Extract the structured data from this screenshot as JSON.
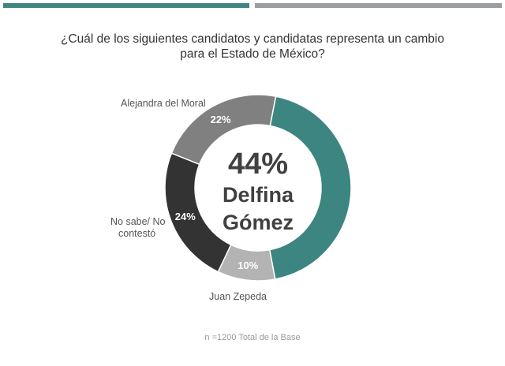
{
  "header_bars": {
    "left_color": "#3f8580",
    "right_color": "#9a9ea3"
  },
  "title_line1": "¿Cuál de los siguientes candidatos y candidatas representa un cambio",
  "title_line2": "para el Estado de México?",
  "chart_data": {
    "type": "pie",
    "donut": true,
    "title": "¿Cuál de los siguientes candidatos y candidatas representa un cambio para el Estado de México?",
    "center_value": "44%",
    "center_label_line1": "Delfina",
    "center_label_line2": "Gómez",
    "categories": [
      "Delfina Gómez",
      "Juan Zepeda",
      "No sabe/ No contestó",
      "Alejandra del Moral"
    ],
    "values": [
      44,
      10,
      24,
      22
    ],
    "data_labels": [
      "44%",
      "10%",
      "24%",
      "22%"
    ],
    "colors": [
      "#3d8580",
      "#b3b3b3",
      "#333333",
      "#808080"
    ],
    "label_texts": {
      "juan": "Juan Zepeda",
      "nosabe_line1": "No sabe/ No",
      "nosabe_line2": "contestó",
      "alejandra": "Alejandra del Moral"
    },
    "footnote": "n =1200 Total de la Base"
  }
}
